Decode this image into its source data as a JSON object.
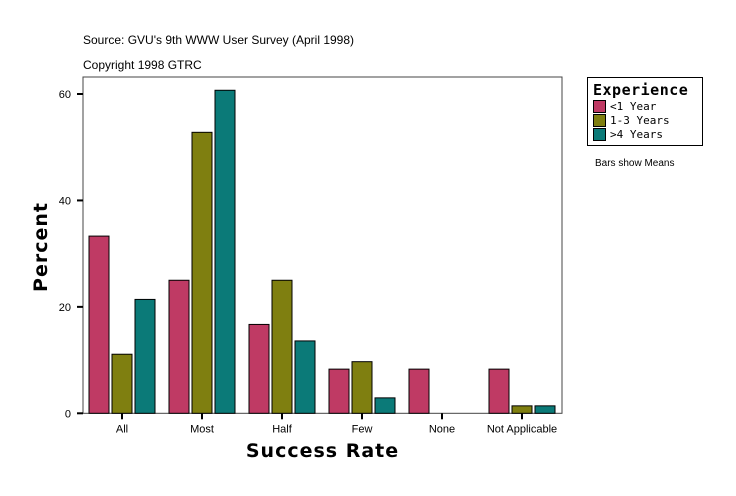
{
  "source_line": "Source: GVU's 9th WWW User Survey (April 1998)",
  "copyright_line": "Copyright 1998 GTRC",
  "note": "Bars show Means",
  "chart_data": {
    "type": "bar",
    "title": "",
    "xlabel": "Success Rate",
    "ylabel": "Percent",
    "ylim": [
      0,
      63
    ],
    "yticks": [
      0,
      20,
      40,
      60
    ],
    "grid": false,
    "legend_title": "Experience",
    "legend_placement": "right",
    "categories": [
      "All",
      "Most",
      "Half",
      "Few",
      "None",
      "Not Applicable"
    ],
    "series": [
      {
        "name": "<1 Year",
        "color": "#bf3a64",
        "values": [
          33.3,
          25.0,
          16.7,
          8.3,
          8.3,
          8.3
        ]
      },
      {
        "name": "1-3 Years",
        "color": "#7f7f10",
        "values": [
          11.1,
          52.8,
          25.0,
          9.7,
          0,
          1.4
        ]
      },
      {
        "name": ">4 Years",
        "color": "#0b7a78",
        "values": [
          21.4,
          60.7,
          13.6,
          2.9,
          0,
          1.4
        ]
      }
    ]
  }
}
